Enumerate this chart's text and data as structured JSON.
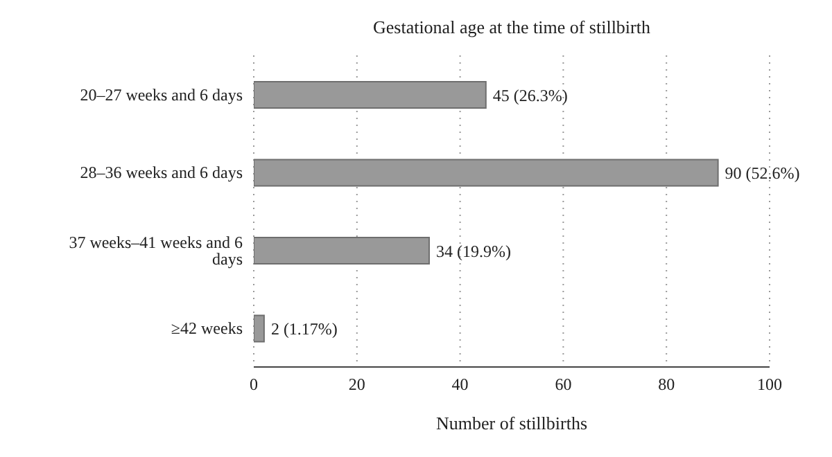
{
  "chart_data": {
    "type": "bar",
    "orientation": "horizontal",
    "title": "Gestational age at the time of stillbirth",
    "xlabel": "Number of stillbirths",
    "categories": [
      "20–27 weeks and 6 days",
      "28–36 weeks and 6 days",
      "37 weeks–41 weeks and 6 days",
      "≥42 weeks"
    ],
    "values": [
      45,
      90,
      34,
      2
    ],
    "value_labels": [
      "45 (26.3%)",
      "90 (52.6%)",
      "34 (19.9%)",
      "2 (1.17%)"
    ],
    "color": "#999999",
    "xlim": [
      0,
      100
    ],
    "xticks": [
      0,
      20,
      40,
      60,
      80,
      100
    ],
    "grid": "x"
  }
}
